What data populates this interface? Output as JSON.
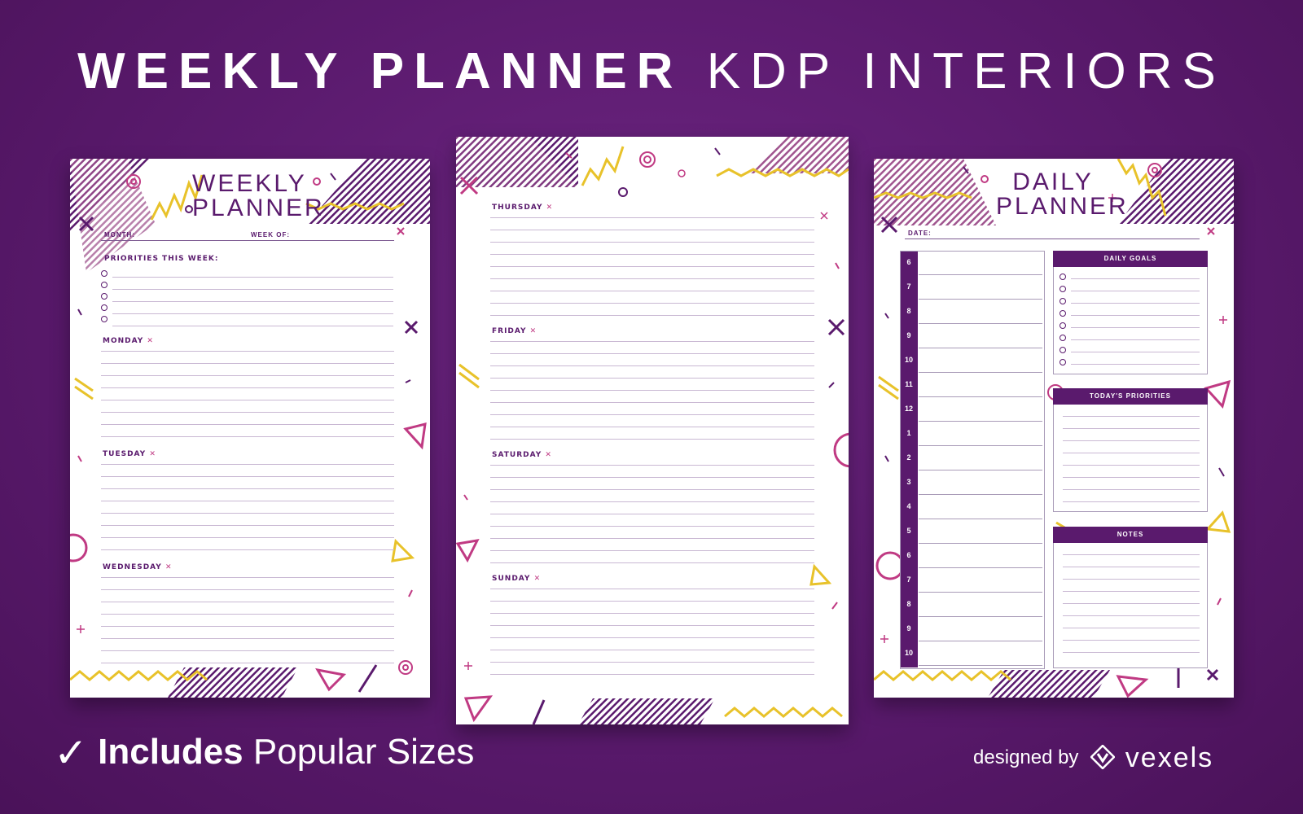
{
  "headline": {
    "part1": "WEEKLY PLANNER",
    "part2": "KDP INTERIORS"
  },
  "weekly_page": {
    "title_line1": "WEEKLY",
    "title_line2": "PLANNER",
    "month_label": "MONTH:",
    "weekof_label": "WEEK OF:",
    "priorities_label": "PRIORITIES THIS WEEK:",
    "days": [
      "MONDAY",
      "TUESDAY",
      "WEDNESDAY"
    ],
    "x_mark": "✕"
  },
  "middle_page": {
    "days": [
      "THURSDAY",
      "FRIDAY",
      "SATURDAY",
      "SUNDAY"
    ],
    "x_mark": "✕"
  },
  "daily_page": {
    "title_line1": "DAILY",
    "title_line2": "PLANNER",
    "date_label": "DATE:",
    "hours": [
      "6",
      "7",
      "8",
      "9",
      "10",
      "11",
      "12",
      "1",
      "2",
      "3",
      "4",
      "5",
      "6",
      "7",
      "8",
      "9",
      "10"
    ],
    "goals_label": "DAILY GOALS",
    "priorities_label": "TODAY'S PRIORITIES",
    "notes_label": "NOTES"
  },
  "footer": {
    "check": "✓",
    "includes": "Includes",
    "rest": "Popular Sizes",
    "designed_by": "designed by",
    "brand": "vexels"
  },
  "colors": {
    "background": "#5a1a6d",
    "accent_purple": "#5a1a6d",
    "accent_pink": "#c03a83",
    "accent_yellow": "#e8c22a"
  }
}
